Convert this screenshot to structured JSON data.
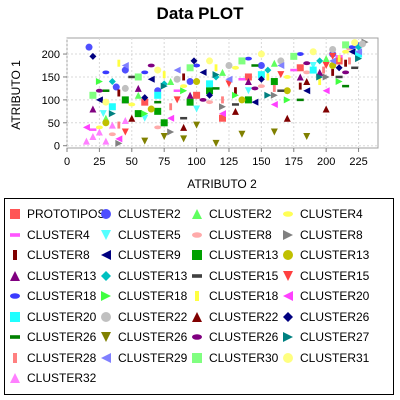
{
  "chart_data": {
    "type": "scatter",
    "title": "Data PLOT",
    "xlabel": "ATRIBUTO 2",
    "ylabel": "ATRIBUTO 1",
    "xlim": [
      0,
      240
    ],
    "ylim": [
      -5,
      235
    ],
    "x_ticks": [
      0,
      25,
      50,
      75,
      100,
      125,
      150,
      175,
      200,
      225
    ],
    "y_ticks": [
      0,
      50,
      100,
      150,
      200
    ],
    "grid": true,
    "legend_position": "bottom",
    "series": [
      {
        "name": "PROTOTIPOS",
        "color": "#ff5555",
        "marker": "square",
        "points": [
          [
            60,
            95
          ],
          [
            100,
            110
          ],
          [
            140,
            150
          ],
          [
            180,
            170
          ],
          [
            210,
            185
          ],
          [
            120,
            60
          ]
        ]
      },
      {
        "name": "CLUSTER2",
        "color": "#4f4fff",
        "marker": "circle",
        "points": [
          [
            17,
            215
          ],
          [
            38,
            128
          ],
          [
            45,
            165
          ],
          [
            70,
            120
          ],
          [
            95,
            140
          ],
          [
            150,
            175
          ],
          [
            205,
            200
          ],
          [
            225,
            218
          ]
        ]
      },
      {
        "name": "CLUSTER2",
        "color": "#5fff5f",
        "marker": "triangle-up",
        "points": [
          [
            30,
            60
          ],
          [
            55,
            110
          ],
          [
            80,
            140
          ],
          [
            120,
            160
          ],
          [
            160,
            180
          ],
          [
            200,
            190
          ]
        ]
      },
      {
        "name": "CLUSTER4",
        "color": "#ffff55",
        "marker": "ellipse",
        "points": [
          [
            25,
            40
          ],
          [
            50,
            90
          ],
          [
            90,
            130
          ],
          [
            130,
            170
          ],
          [
            170,
            150
          ],
          [
            215,
            205
          ]
        ]
      },
      {
        "name": "CLUSTER4",
        "color": "#ff55ff",
        "marker": "flat",
        "points": [
          [
            20,
            35
          ],
          [
            45,
            95
          ],
          [
            85,
            120
          ],
          [
            135,
            145
          ],
          [
            175,
            165
          ],
          [
            210,
            195
          ]
        ]
      },
      {
        "name": "CLUSTER5",
        "color": "#55ffff",
        "marker": "triangle-down",
        "points": [
          [
            28,
            70
          ],
          [
            60,
            60
          ],
          [
            100,
            80
          ],
          [
            140,
            120
          ],
          [
            190,
            175
          ],
          [
            220,
            210
          ]
        ]
      },
      {
        "name": "CLUSTER8",
        "color": "#ffaaaa",
        "marker": "ellipse",
        "points": [
          [
            35,
            25
          ],
          [
            70,
            40
          ],
          [
            110,
            95
          ],
          [
            150,
            130
          ],
          [
            185,
            160
          ],
          [
            218,
            212
          ]
        ]
      },
      {
        "name": "CLUSTER8",
        "color": "#808080",
        "marker": "triangle-right",
        "points": [
          [
            40,
            5
          ],
          [
            80,
            30
          ],
          [
            120,
            85
          ],
          [
            160,
            110
          ],
          [
            200,
            150
          ],
          [
            230,
            226
          ]
        ]
      },
      {
        "name": "CLUSTER8",
        "color": "#800000",
        "marker": "flat-vertical",
        "points": [
          [
            40,
            115
          ],
          [
            90,
            150
          ],
          [
            130,
            120
          ],
          [
            180,
            130
          ],
          [
            215,
            180
          ],
          [
            205,
            160
          ]
        ]
      },
      {
        "name": "CLUSTER9",
        "color": "#000080",
        "marker": "triangle-left",
        "points": [
          [
            25,
            100
          ],
          [
            65,
            145
          ],
          [
            105,
            160
          ],
          [
            145,
            95
          ],
          [
            185,
            120
          ],
          [
            220,
            205
          ]
        ]
      },
      {
        "name": "CLUSTER13",
        "color": "#00a000",
        "marker": "square",
        "points": [
          [
            45,
            100
          ],
          [
            70,
            75
          ],
          [
            95,
            95
          ],
          [
            110,
            120
          ],
          [
            140,
            100
          ],
          [
            160,
            140
          ],
          [
            75,
            50
          ],
          [
            55,
            70
          ]
        ]
      },
      {
        "name": "CLUSTER13",
        "color": "#c0c000",
        "marker": "circle",
        "points": [
          [
            30,
            50
          ],
          [
            65,
            80
          ],
          [
            100,
            140
          ],
          [
            135,
            100
          ],
          [
            170,
            120
          ],
          [
            205,
            175
          ]
        ]
      },
      {
        "name": "CLUSTER13",
        "color": "#800080",
        "marker": "triangle-up",
        "points": [
          [
            20,
            80
          ],
          [
            55,
            125
          ],
          [
            95,
            110
          ],
          [
            140,
            140
          ],
          [
            180,
            150
          ],
          [
            195,
            160
          ]
        ]
      },
      {
        "name": "CLUSTER13",
        "color": "#00c0c0",
        "marker": "diamond",
        "points": [
          [
            35,
            140
          ],
          [
            75,
            135
          ],
          [
            115,
            150
          ],
          [
            155,
            165
          ],
          [
            195,
            185
          ],
          [
            225,
            215
          ]
        ]
      },
      {
        "name": "CLUSTER15",
        "color": "#404040",
        "marker": "flat",
        "points": [
          [
            50,
            150
          ],
          [
            90,
            60
          ],
          [
            130,
            90
          ],
          [
            165,
            120
          ],
          [
            210,
            150
          ],
          [
            222,
            170
          ]
        ]
      },
      {
        "name": "CLUSTER15",
        "color": "#ff4040",
        "marker": "triangle-down",
        "points": [
          [
            45,
            30
          ],
          [
            85,
            100
          ],
          [
            125,
            135
          ],
          [
            165,
            155
          ],
          [
            205,
            195
          ],
          [
            200,
            175
          ]
        ]
      },
      {
        "name": "CLUSTER18",
        "color": "#3a3aff",
        "marker": "ellipse",
        "points": [
          [
            30,
            160
          ],
          [
            60,
            160
          ],
          [
            100,
            175
          ],
          [
            140,
            190
          ],
          [
            180,
            200
          ],
          [
            220,
            215
          ]
        ]
      },
      {
        "name": "CLUSTER18",
        "color": "#40ff40",
        "marker": "triangle-right",
        "points": [
          [
            25,
            140
          ],
          [
            60,
            70
          ],
          [
            90,
            120
          ],
          [
            130,
            110
          ],
          [
            170,
            100
          ],
          [
            210,
            140
          ]
        ]
      },
      {
        "name": "CLUSTER18",
        "color": "#ffff40",
        "marker": "flat-vertical",
        "points": [
          [
            40,
            180
          ],
          [
            75,
            155
          ],
          [
            115,
            170
          ],
          [
            155,
            150
          ],
          [
            195,
            140
          ],
          [
            210,
            190
          ]
        ]
      },
      {
        "name": "CLUSTER20",
        "color": "#ff40ff",
        "marker": "triangle-left",
        "points": [
          [
            15,
            40
          ],
          [
            40,
            15
          ],
          [
            80,
            60
          ],
          [
            120,
            70
          ],
          [
            160,
            90
          ],
          [
            200,
            120
          ]
        ]
      },
      {
        "name": "CLUSTER20",
        "color": "#20ffff",
        "marker": "square",
        "points": [
          [
            35,
            85
          ],
          [
            70,
            110
          ],
          [
            110,
            135
          ],
          [
            150,
            155
          ],
          [
            190,
            165
          ],
          [
            225,
            200
          ]
        ]
      },
      {
        "name": "CLUSTER22",
        "color": "#c0c0c0",
        "marker": "circle",
        "points": [
          [
            45,
            125
          ],
          [
            85,
            145
          ],
          [
            125,
            175
          ],
          [
            165,
            185
          ],
          [
            205,
            210
          ],
          [
            228,
            222
          ]
        ]
      },
      {
        "name": "CLUSTER22",
        "color": "#800000",
        "marker": "triangle-up",
        "points": [
          [
            50,
            60
          ],
          [
            90,
            40
          ],
          [
            130,
            75
          ],
          [
            170,
            60
          ],
          [
            200,
            80
          ],
          [
            185,
            140
          ]
        ]
      },
      {
        "name": "CLUSTER26",
        "color": "#000080",
        "marker": "diamond",
        "points": [
          [
            20,
            195
          ],
          [
            98,
            185
          ],
          [
            60,
            105
          ],
          [
            110,
            110
          ],
          [
            150,
            145
          ],
          [
            210,
            170
          ]
        ]
      },
      {
        "name": "CLUSTER26",
        "color": "#008000",
        "marker": "flat",
        "points": [
          [
            30,
            120
          ],
          [
            70,
            95
          ],
          [
            115,
            125
          ],
          [
            145,
            175
          ],
          [
            180,
            100
          ],
          [
            215,
            130
          ]
        ]
      },
      {
        "name": "CLUSTER26",
        "color": "#808000",
        "marker": "triangle-down",
        "points": [
          [
            60,
            10
          ],
          [
            90,
            15
          ],
          [
            115,
            5
          ],
          [
            135,
            25
          ],
          [
            160,
            30
          ],
          [
            185,
            20
          ],
          [
            100,
            45
          ],
          [
            75,
            20
          ]
        ]
      },
      {
        "name": "CLUSTER26",
        "color": "#800080",
        "marker": "ellipse",
        "points": [
          [
            25,
            120
          ],
          [
            65,
            175
          ],
          [
            105,
            100
          ],
          [
            145,
            125
          ],
          [
            185,
            180
          ],
          [
            215,
            160
          ]
        ]
      },
      {
        "name": "CLUSTER27",
        "color": "#008080",
        "marker": "triangle-right",
        "points": [
          [
            35,
            70
          ],
          [
            75,
            130
          ],
          [
            115,
            155
          ],
          [
            155,
            110
          ],
          [
            195,
            150
          ],
          [
            225,
            190
          ]
        ]
      },
      {
        "name": "CLUSTER28",
        "color": "#ff8080",
        "marker": "flat-vertical",
        "points": [
          [
            40,
            45
          ],
          [
            80,
            85
          ],
          [
            120,
            100
          ],
          [
            160,
            125
          ],
          [
            198,
            165
          ],
          [
            218,
            185
          ]
        ]
      },
      {
        "name": "CLUSTER29",
        "color": "#8080ff",
        "marker": "triangle-left",
        "points": [
          [
            45,
            175
          ],
          [
            85,
            165
          ],
          [
            125,
            145
          ],
          [
            165,
            175
          ],
          [
            205,
            185
          ],
          [
            225,
            205
          ]
        ]
      },
      {
        "name": "CLUSTER30",
        "color": "#80ff80",
        "marker": "square",
        "points": [
          [
            20,
            110
          ],
          [
            55,
            150
          ],
          [
            95,
            170
          ],
          [
            135,
            185
          ],
          [
            175,
            195
          ],
          [
            215,
            220
          ]
        ]
      },
      {
        "name": "CLUSTER31",
        "color": "#ffff80",
        "marker": "circle",
        "points": [
          [
            30,
            95
          ],
          [
            70,
            165
          ],
          [
            110,
            185
          ],
          [
            150,
            200
          ],
          [
            190,
            205
          ],
          [
            222,
            225
          ]
        ]
      },
      {
        "name": "CLUSTER32",
        "color": "#ff80ff",
        "marker": "triangle-up",
        "points": [
          [
            15,
            10
          ],
          [
            20,
            20
          ],
          [
            30,
            10
          ],
          [
            25,
            30
          ],
          [
            45,
            55
          ],
          [
            35,
            45
          ]
        ]
      }
    ]
  }
}
